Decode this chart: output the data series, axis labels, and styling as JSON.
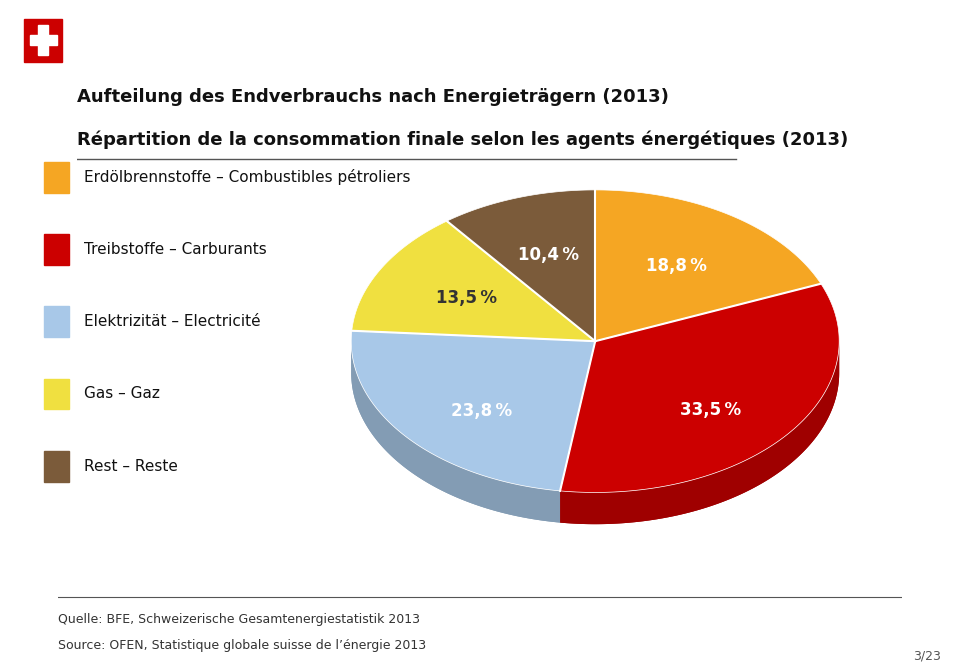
{
  "title_line1": "Aufteilung des Endverbrauchs nach Energieträgern (2013)",
  "title_line2": "Répartition de la consommation finale selon les agents énergétiques (2013)",
  "slices": [
    {
      "label": "Erdölbrennstoffe – Combustibles pétroliers",
      "value": 18.8,
      "color": "#F5A623",
      "pct": "18,8 %"
    },
    {
      "label": "Treibstoffe – Carburants",
      "value": 33.5,
      "color": "#CC0000",
      "pct": "33,5 %"
    },
    {
      "label": "Elektrizität – Electricité",
      "value": 23.8,
      "color": "#A8C8E8",
      "pct": "23,8 %"
    },
    {
      "label": "Gas – Gaz",
      "value": 13.5,
      "color": "#F0E040",
      "pct": "13,5 %"
    },
    {
      "label": "Rest – Reste",
      "value": 10.4,
      "color": "#7B5B3A",
      "pct": "10,4 %"
    }
  ],
  "source_line1": "Quelle: BFE, Schweizerische Gesamtenergiestatistik 2013",
  "source_line2": "Source: OFEN, Statistique globale suisse de l’énergie 2013",
  "background_color": "#FFFFFF",
  "title_fontsize": 13,
  "legend_fontsize": 11,
  "source_fontsize": 9,
  "pct_fontsize": 12,
  "logo_color": "#CC0000"
}
